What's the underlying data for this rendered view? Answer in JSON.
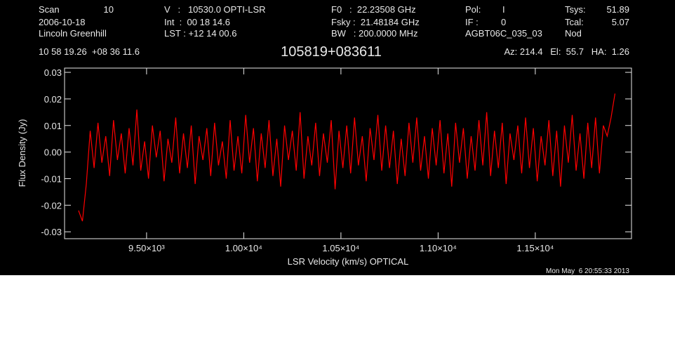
{
  "chart_data": {
    "type": "line",
    "title": "105819+083611",
    "header": [
      "Scan",
      "10",
      "2006-10-18",
      "Lincoln Greenhill",
      "V   :   10530.0 OPTI-LSR",
      "Int  :  00 18 14.6",
      "LST : +12 14 00.6",
      "F0   :  22.23508 GHz",
      "Fsky :  21.48184 GHz",
      "BW   : 200.0000 MHz",
      "Pol:",
      "I",
      "IF :",
      "0",
      "AGBT06C_035_03",
      "Tsys:",
      "51.89",
      "Tcal:",
      "5.07",
      "Nod",
      "10 58 19.26  +08 36 11.6",
      "Az: 214.4   El:  55.7   HA:  1.26"
    ],
    "timestamp": "Mon May  6 20:55:33 2013",
    "xlabel": "LSR Velocity (km/s) OPTICAL",
    "ylabel": "Flux Density (Jy)",
    "xlim": [
      9078,
      11995
    ],
    "ylim": [
      -0.0326,
      0.0316
    ],
    "xticks": [
      {
        "value": 9500,
        "label": "9.50×10³"
      },
      {
        "value": 10000,
        "label": "1.00×10⁴"
      },
      {
        "value": 10500,
        "label": "1.05×10⁴"
      },
      {
        "value": 11000,
        "label": "1.10×10⁴"
      },
      {
        "value": 11500,
        "label": "1.15×10⁴"
      }
    ],
    "yticks": [
      -0.03,
      -0.02,
      -0.01,
      {
        "value": 0,
        "label": "0.00"
      },
      0.01,
      0.02,
      0.03
    ],
    "series": [
      {
        "color": "#ff0000",
        "x": [
          9150,
          9170,
          9190,
          9210,
          9230,
          9250,
          9270,
          9290,
          9310,
          9330,
          9350,
          9370,
          9390,
          9410,
          9430,
          9450,
          9470,
          9490,
          9510,
          9530,
          9550,
          9570,
          9590,
          9610,
          9630,
          9650,
          9670,
          9690,
          9710,
          9730,
          9750,
          9770,
          9790,
          9810,
          9830,
          9850,
          9870,
          9890,
          9910,
          9930,
          9950,
          9970,
          9990,
          10010,
          10030,
          10050,
          10070,
          10090,
          10110,
          10130,
          10150,
          10170,
          10190,
          10210,
          10230,
          10250,
          10270,
          10290,
          10310,
          10330,
          10350,
          10370,
          10390,
          10410,
          10430,
          10450,
          10470,
          10490,
          10510,
          10530,
          10550,
          10570,
          10590,
          10610,
          10630,
          10650,
          10670,
          10690,
          10710,
          10730,
          10750,
          10770,
          10790,
          10810,
          10830,
          10850,
          10870,
          10890,
          10910,
          10930,
          10950,
          10970,
          10990,
          11010,
          11030,
          11050,
          11070,
          11090,
          11110,
          11130,
          11150,
          11170,
          11190,
          11210,
          11230,
          11250,
          11270,
          11290,
          11310,
          11330,
          11350,
          11370,
          11390,
          11410,
          11430,
          11450,
          11470,
          11490,
          11510,
          11530,
          11550,
          11570,
          11590,
          11610,
          11630,
          11650,
          11670,
          11690,
          11710,
          11730,
          11750,
          11770,
          11790,
          11810,
          11830,
          11850,
          11870,
          11890,
          11910
        ],
        "values": [
          -0.022,
          -0.026,
          -0.012,
          0.008,
          -0.006,
          0.011,
          -0.004,
          0.006,
          -0.009,
          0.012,
          -0.003,
          0.007,
          -0.008,
          0.009,
          -0.005,
          0.016,
          -0.007,
          0.004,
          -0.01,
          0.01,
          -0.002,
          0.008,
          -0.011,
          0.005,
          -0.004,
          0.013,
          -0.008,
          0.007,
          -0.006,
          0.01,
          -0.012,
          0.006,
          -0.003,
          0.009,
          -0.009,
          0.011,
          -0.005,
          0.004,
          -0.01,
          0.012,
          -0.007,
          0.006,
          -0.008,
          0.014,
          -0.004,
          0.009,
          -0.011,
          0.007,
          -0.006,
          0.012,
          -0.009,
          0.005,
          -0.013,
          0.01,
          -0.003,
          0.008,
          -0.007,
          0.015,
          -0.01,
          0.006,
          -0.005,
          0.011,
          -0.009,
          0.007,
          -0.004,
          0.012,
          -0.014,
          0.008,
          -0.006,
          0.01,
          -0.008,
          0.013,
          -0.005,
          0.006,
          -0.011,
          0.009,
          -0.003,
          0.014,
          -0.007,
          0.01,
          -0.006,
          0.008,
          -0.012,
          0.005,
          -0.009,
          0.011,
          -0.004,
          0.013,
          -0.007,
          0.006,
          -0.01,
          0.009,
          -0.005,
          0.012,
          -0.008,
          0.007,
          -0.013,
          0.011,
          -0.004,
          0.009,
          -0.01,
          0.006,
          -0.007,
          0.012,
          -0.005,
          0.015,
          -0.009,
          0.008,
          -0.006,
          0.011,
          -0.012,
          0.007,
          -0.003,
          0.01,
          -0.008,
          0.013,
          -0.006,
          0.009,
          -0.011,
          0.006,
          -0.005,
          0.012,
          -0.009,
          0.008,
          -0.013,
          0.01,
          -0.004,
          0.014,
          -0.007,
          0.007,
          -0.01,
          0.011,
          -0.006,
          0.013,
          -0.008,
          0.01,
          0.006,
          0.013,
          0.022
        ]
      }
    ]
  }
}
